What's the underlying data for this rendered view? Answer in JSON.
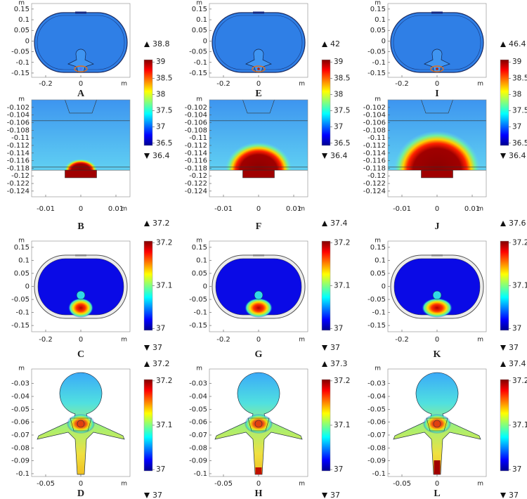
{
  "chart_data": [
    {
      "type": "heatmap",
      "label": "A",
      "x_unit": "m",
      "y_unit": "m",
      "xlim": [
        -0.28,
        0.28
      ],
      "ylim": [
        -0.17,
        0.176
      ],
      "xticks": [
        -0.2,
        0
      ],
      "yticks": [
        0.15,
        0.1,
        0.05,
        0,
        -0.05,
        -0.1,
        -0.15
      ],
      "colorbar": {
        "lim": [
          36.43,
          39.07
        ],
        "ticks": [
          39,
          38.5,
          38,
          37.5,
          37,
          36.5
        ],
        "max": 38.8,
        "min": 36.4
      }
    },
    {
      "type": "heatmap",
      "label": "B",
      "x_unit": "m",
      "y_unit": "m",
      "xlim": [
        -0.014,
        0.014
      ],
      "ylim": [
        -0.1255,
        -0.1
      ],
      "xticks": [
        -0.01,
        0,
        0.01
      ],
      "yticks": [
        -0.102,
        -0.104,
        -0.106,
        -0.108,
        -0.11,
        -0.112,
        -0.114,
        -0.116,
        -0.118,
        -0.12,
        -0.122,
        -0.124
      ]
    },
    {
      "type": "heatmap",
      "label": "C",
      "x_unit": "m",
      "y_unit": "m",
      "xlim": [
        -0.28,
        0.28
      ],
      "ylim": [
        -0.174,
        0.174
      ],
      "xticks": [
        -0.2,
        0
      ],
      "yticks": [
        0.15,
        0.1,
        0.05,
        0,
        -0.05,
        -0.1,
        -0.15
      ],
      "colorbar": {
        "lim": [
          36.996,
          37.204
        ],
        "ticks": [
          37.2,
          37.1,
          37
        ],
        "max": 37.2,
        "min": 37
      }
    },
    {
      "type": "heatmap",
      "label": "D",
      "x_unit": "m",
      "y_unit": "m",
      "xlim": [
        -0.07,
        0.07
      ],
      "ylim": [
        -0.1022,
        -0.0187
      ],
      "xticks": [
        -0.05,
        0
      ],
      "yticks": [
        -0.03,
        -0.04,
        -0.05,
        -0.06,
        -0.07,
        -0.08,
        -0.09,
        -0.1
      ],
      "colorbar": {
        "lim": [
          36.997,
          37.203
        ],
        "ticks": [
          37.2,
          37.1,
          37
        ],
        "max": 37.2,
        "min": 37
      }
    },
    {
      "type": "heatmap",
      "label": "E",
      "x_unit": "m",
      "y_unit": "m",
      "xlim": [
        -0.28,
        0.28
      ],
      "ylim": [
        -0.17,
        0.176
      ],
      "xticks": [
        -0.2,
        0
      ],
      "yticks": [
        0.15,
        0.1,
        0.05,
        0,
        -0.05,
        -0.1,
        -0.15
      ],
      "colorbar": {
        "lim": [
          36.43,
          39.07
        ],
        "ticks": [
          39,
          38.5,
          38,
          37.5,
          37,
          36.5
        ],
        "max": 42,
        "min": 36.4
      }
    },
    {
      "type": "heatmap",
      "label": "F",
      "x_unit": "m",
      "y_unit": "m",
      "xlim": [
        -0.014,
        0.014
      ],
      "ylim": [
        -0.1255,
        -0.1
      ],
      "xticks": [
        -0.01,
        0,
        0.01
      ],
      "yticks": [
        -0.102,
        -0.104,
        -0.106,
        -0.108,
        -0.11,
        -0.112,
        -0.114,
        -0.116,
        -0.118,
        -0.12,
        -0.122,
        -0.124
      ]
    },
    {
      "type": "heatmap",
      "label": "G",
      "x_unit": "m",
      "y_unit": "m",
      "xlim": [
        -0.28,
        0.28
      ],
      "ylim": [
        -0.174,
        0.174
      ],
      "xticks": [
        -0.2,
        0
      ],
      "yticks": [
        0.15,
        0.1,
        0.05,
        0,
        -0.05,
        -0.1,
        -0.15
      ],
      "colorbar": {
        "lim": [
          36.996,
          37.204
        ],
        "ticks": [
          37.2,
          37.1,
          37
        ],
        "max": 37.4,
        "min": 37
      }
    },
    {
      "type": "heatmap",
      "label": "H",
      "x_unit": "m",
      "y_unit": "m",
      "xlim": [
        -0.07,
        0.07
      ],
      "ylim": [
        -0.1022,
        -0.0187
      ],
      "xticks": [
        -0.05,
        0
      ],
      "yticks": [
        -0.03,
        -0.04,
        -0.05,
        -0.06,
        -0.07,
        -0.08,
        -0.09,
        -0.1
      ],
      "colorbar": {
        "lim": [
          36.997,
          37.203
        ],
        "ticks": [
          37.2,
          37.1,
          37
        ],
        "max": 37.3,
        "min": 37
      }
    },
    {
      "type": "heatmap",
      "label": "I",
      "x_unit": "m",
      "y_unit": "m",
      "xlim": [
        -0.28,
        0.28
      ],
      "ylim": [
        -0.17,
        0.176
      ],
      "xticks": [
        -0.2,
        0
      ],
      "yticks": [
        0.15,
        0.1,
        0.05,
        0,
        -0.05,
        -0.1,
        -0.15
      ],
      "colorbar": {
        "lim": [
          36.43,
          39.07
        ],
        "ticks": [
          39,
          38.5,
          38,
          37.5,
          37,
          36.5
        ],
        "max": 46.4,
        "min": 36.4
      }
    },
    {
      "type": "heatmap",
      "label": "J",
      "x_unit": "m",
      "y_unit": "m",
      "xlim": [
        -0.014,
        0.014
      ],
      "ylim": [
        -0.1255,
        -0.1
      ],
      "xticks": [
        -0.01,
        0,
        0.01
      ],
      "yticks": [
        -0.102,
        -0.104,
        -0.106,
        -0.108,
        -0.11,
        -0.112,
        -0.114,
        -0.116,
        -0.118,
        -0.12,
        -0.122,
        -0.124
      ]
    },
    {
      "type": "heatmap",
      "label": "K",
      "x_unit": "m",
      "y_unit": "m",
      "xlim": [
        -0.28,
        0.28
      ],
      "ylim": [
        -0.174,
        0.174
      ],
      "xticks": [
        -0.2,
        0
      ],
      "yticks": [
        0.15,
        0.1,
        0.05,
        0,
        -0.05,
        -0.1,
        -0.15
      ],
      "colorbar": {
        "lim": [
          36.996,
          37.204
        ],
        "ticks": [
          37.2,
          37.1,
          37
        ],
        "max": 37.6,
        "min": 37
      }
    },
    {
      "type": "heatmap",
      "label": "L",
      "x_unit": "m",
      "y_unit": "m",
      "xlim": [
        -0.07,
        0.07
      ],
      "ylim": [
        -0.1022,
        -0.0187
      ],
      "xticks": [
        -0.05,
        0
      ],
      "yticks": [
        -0.03,
        -0.04,
        -0.05,
        -0.06,
        -0.07,
        -0.08,
        -0.09,
        -0.1
      ],
      "colorbar": {
        "lim": [
          36.997,
          37.203
        ],
        "ticks": [
          37.2,
          37.1,
          37
        ],
        "max": 37.4,
        "min": 37
      }
    }
  ]
}
